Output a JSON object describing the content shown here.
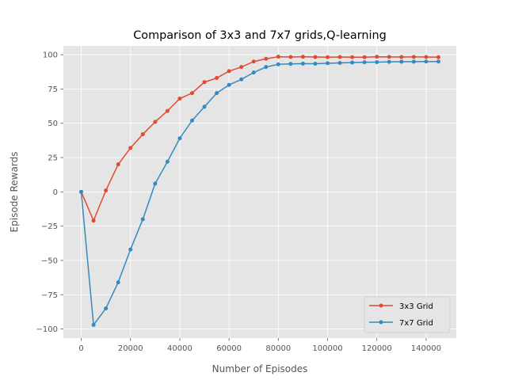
{
  "chart_data": {
    "type": "line",
    "title": "Comparison of 3x3 and 7x7 grids,Q-learning",
    "xlabel": "Number of Episodes",
    "ylabel": "Episode Rewards",
    "xlim": [
      -7250,
      152250
    ],
    "ylim": [
      -106.6,
      106.4
    ],
    "xticks": [
      0,
      20000,
      40000,
      60000,
      80000,
      100000,
      120000,
      140000
    ],
    "yticks": [
      -100,
      -75,
      -50,
      -25,
      0,
      25,
      50,
      75,
      100
    ],
    "xtick_labels": [
      "0",
      "20000",
      "40000",
      "60000",
      "80000",
      "100000",
      "120000",
      "140000"
    ],
    "ytick_labels": [
      "−100",
      "−75",
      "−50",
      "−25",
      "0",
      "25",
      "50",
      "75",
      "100"
    ],
    "grid": true,
    "legend_position": "lower-right",
    "x": [
      0,
      5000,
      10000,
      15000,
      20000,
      25000,
      30000,
      35000,
      40000,
      45000,
      50000,
      55000,
      60000,
      65000,
      70000,
      75000,
      80000,
      85000,
      90000,
      95000,
      100000,
      105000,
      110000,
      115000,
      120000,
      125000,
      130000,
      135000,
      140000,
      145000
    ],
    "series": [
      {
        "name": "3x3 Grid",
        "color": "#E24A33",
        "values": [
          0,
          -21,
          1,
          20,
          32,
          42,
          51,
          59,
          68,
          72,
          80,
          83,
          88,
          91,
          95,
          97,
          98.5,
          98.3,
          98.5,
          98.3,
          98.2,
          98.3,
          98.2,
          98.2,
          98.5,
          98.4,
          98.3,
          98.4,
          98.3,
          98.2
        ]
      },
      {
        "name": "7x7 Grid",
        "color": "#348ABD",
        "values": [
          0,
          -97,
          -85,
          -66,
          -42,
          -20,
          6,
          22,
          39,
          52,
          62,
          72,
          78,
          82,
          87,
          91,
          93,
          93.3,
          93.5,
          93.4,
          93.8,
          94.0,
          94.3,
          94.5,
          94.6,
          94.8,
          94.9,
          94.9,
          95.0,
          95.0
        ]
      }
    ]
  }
}
